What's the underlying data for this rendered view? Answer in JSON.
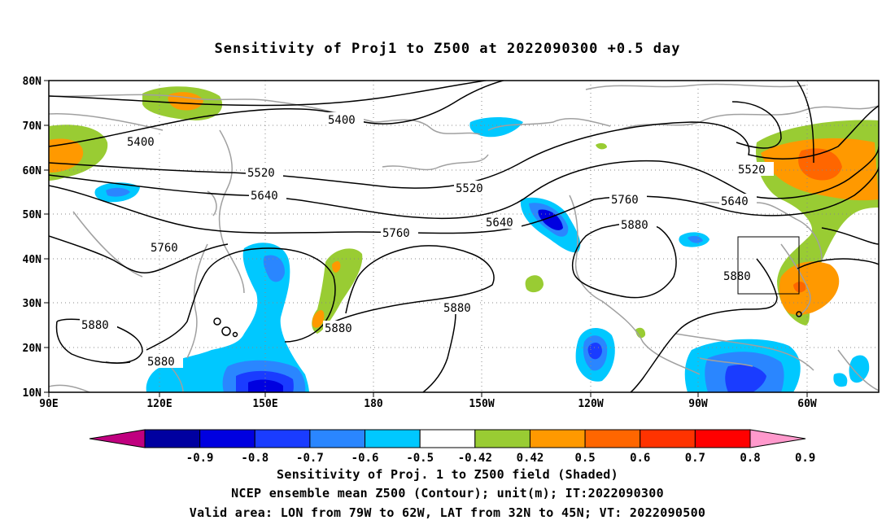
{
  "title": "Sensitivity of Proj1 to Z500 at 2022090300 +0.5 day",
  "lat_labels": [
    "80N",
    "70N",
    "60N",
    "50N",
    "40N",
    "30N",
    "20N",
    "10N"
  ],
  "lon_labels": [
    "90E",
    "120E",
    "150E",
    "180",
    "150W",
    "120W",
    "90W",
    "60W"
  ],
  "contour_levels": [
    "5400",
    "5520",
    "5640",
    "5760",
    "5880"
  ],
  "contour_labels": [
    {
      "text": "5400"
    },
    {
      "text": "5400"
    },
    {
      "text": "5520"
    },
    {
      "text": "5520"
    },
    {
      "text": "5520"
    },
    {
      "text": "5640"
    },
    {
      "text": "5640"
    },
    {
      "text": "5640"
    },
    {
      "text": "5760"
    },
    {
      "text": "5760"
    },
    {
      "text": "5760"
    },
    {
      "text": "5880"
    },
    {
      "text": "5880"
    },
    {
      "text": "5880"
    },
    {
      "text": "5880"
    },
    {
      "text": "5880"
    },
    {
      "text": "5880"
    }
  ],
  "colorbar": {
    "ticks": [
      "-0.9",
      "-0.8",
      "-0.7",
      "-0.6",
      "-0.5",
      "-0.42",
      "0.42",
      "0.5",
      "0.6",
      "0.7",
      "0.8",
      "0.9"
    ],
    "colors": [
      "#c0007f",
      "#0000a0",
      "#0000e0",
      "#1a3cff",
      "#2a86ff",
      "#00c8ff",
      "#ffffff",
      "#99cc33",
      "#ff9900",
      "#ff6600",
      "#ff3300",
      "#ff0000",
      "#ff99cc"
    ]
  },
  "colors": {
    "contour": "#000000",
    "coast": "#a0a0a0",
    "grid": "#888888"
  },
  "captions": {
    "line1": "Sensitivity of Proj. 1 to Z500 field (Shaded)",
    "line2": "NCEP ensemble mean Z500 (Contour); unit(m); IT:2022090300",
    "line3": "Valid area: LON from 79W to 62W, LAT from 32N to 45N; VT: 2022090500"
  }
}
